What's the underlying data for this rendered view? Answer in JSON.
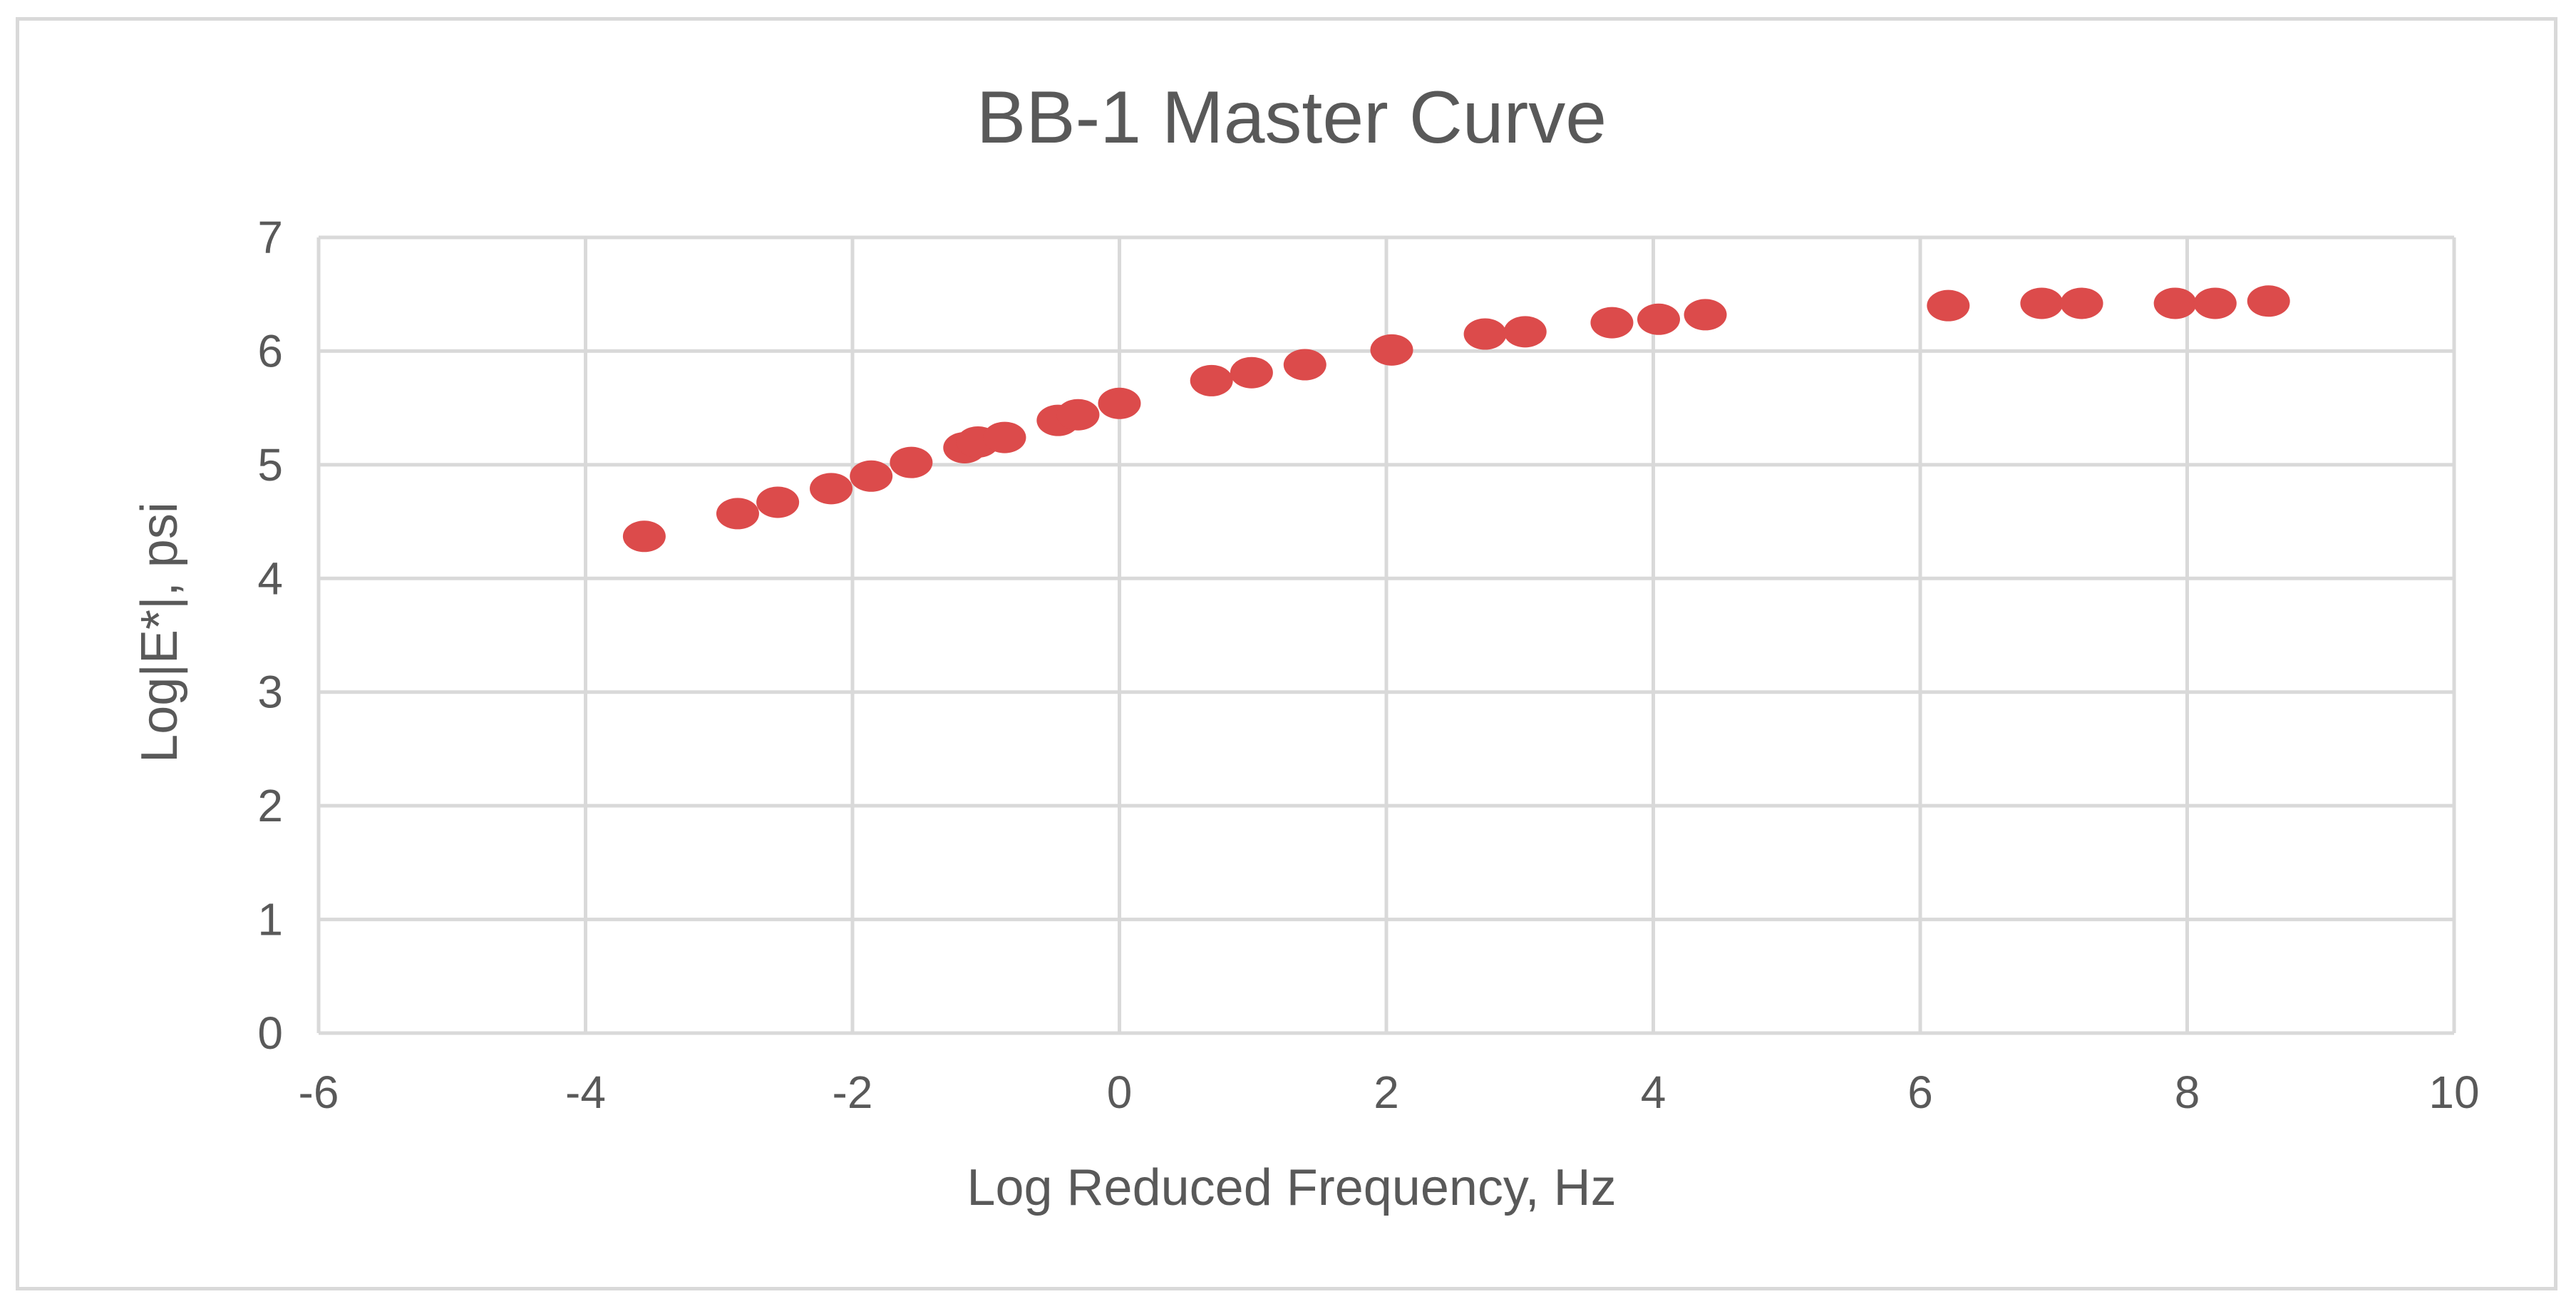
{
  "chart_data": {
    "type": "scatter",
    "title": "BB-1 Master Curve",
    "xlabel": "Log Reduced Frequency, Hz",
    "ylabel": "Log|E*|, psi",
    "xlim": [
      -6,
      10
    ],
    "ylim": [
      0,
      7
    ],
    "x_ticks": [
      "-6",
      "-4",
      "-2",
      "0",
      "2",
      "4",
      "6",
      "8",
      "10"
    ],
    "y_ticks": [
      "0",
      "1",
      "2",
      "3",
      "4",
      "5",
      "6",
      "7"
    ],
    "grid": true,
    "legend": "none",
    "marker_color": "#dc4b4b",
    "series": [
      {
        "x": [
          -3.56,
          -2.86,
          -2.56,
          -2.16,
          -1.86,
          -1.56,
          -1.16,
          -1.06,
          -0.86,
          -0.46,
          -0.31,
          0.0,
          0.69,
          0.99,
          1.39,
          2.04,
          2.74,
          3.04,
          3.69,
          4.04,
          4.39,
          6.21,
          6.91,
          7.21,
          7.91,
          8.21,
          8.61
        ],
        "y": [
          4.37,
          4.57,
          4.67,
          4.79,
          4.9,
          5.02,
          5.15,
          5.2,
          5.24,
          5.39,
          5.44,
          5.54,
          5.74,
          5.81,
          5.88,
          6.01,
          6.15,
          6.17,
          6.25,
          6.28,
          6.32,
          6.4,
          6.42,
          6.42,
          6.42,
          6.42,
          6.44
        ]
      }
    ]
  }
}
